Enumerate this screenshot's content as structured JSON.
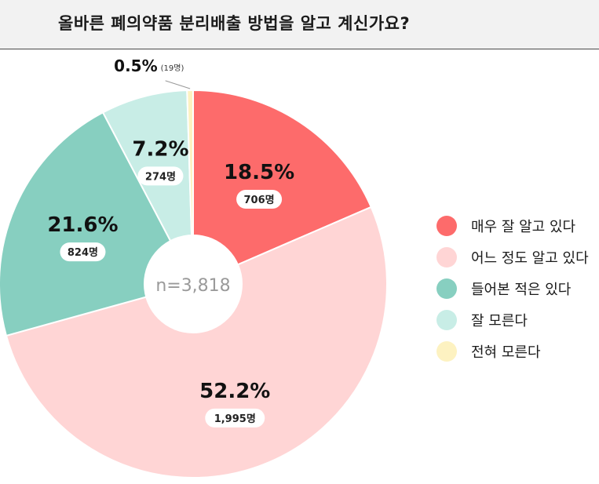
{
  "title": "올바른 폐의약품 분리배출 방법을 알고 계신가요?",
  "center_label": "n=3,818",
  "chart_data": {
    "type": "pie",
    "title": "올바른 폐의약품 분리배출 방법을 알고 계신가요?",
    "total_label": "n=3,818",
    "slices": [
      {
        "name": "매우 잘 알고 있다",
        "value": 18.5,
        "percent_label": "18.5%",
        "count_label": "706명",
        "color": "#fd6b6b"
      },
      {
        "name": "어느 정도 알고 있다",
        "value": 52.2,
        "percent_label": "52.2%",
        "count_label": "1,995명",
        "color": "#ffd5d5"
      },
      {
        "name": "들어본 적은 있다",
        "value": 21.6,
        "percent_label": "21.6%",
        "count_label": "824명",
        "color": "#87cfc0"
      },
      {
        "name": "잘 모른다",
        "value": 7.2,
        "percent_label": "7.2%",
        "count_label": "274명",
        "color": "#c8ede6"
      },
      {
        "name": "전혀 모른다",
        "value": 0.5,
        "percent_label": "0.5%",
        "count_label": "(19명)",
        "color": "#fdf2c1"
      }
    ],
    "legend_position": "right"
  }
}
